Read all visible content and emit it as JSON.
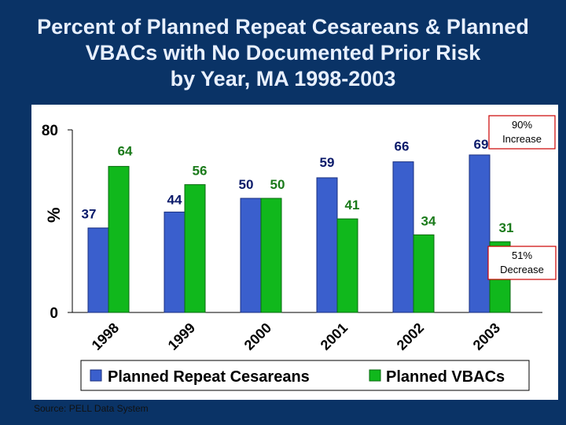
{
  "title_lines": [
    "Percent of Planned Repeat Cesareans & Planned",
    "VBACs with No Documented Prior Risk",
    "by Year, MA 1998-2003"
  ],
  "source": "Source: PELL Data System",
  "colors": {
    "background": "#0a3366",
    "series1": "#3a5fcd",
    "series2": "#10b81c",
    "label2": "#1a7a1a",
    "callout_border": "#cc0000"
  },
  "chart_data": {
    "type": "bar",
    "categories": [
      "1998",
      "1999",
      "2000",
      "2001",
      "2002",
      "2003"
    ],
    "series": [
      {
        "name": "Planned Repeat Cesareans",
        "values": [
          37,
          44,
          50,
          59,
          66,
          69
        ]
      },
      {
        "name": "Planned VBACs",
        "values": [
          64,
          56,
          50,
          41,
          34,
          31
        ]
      }
    ],
    "ylabel": "%",
    "ylim": [
      0,
      80
    ],
    "yticks": [
      "0",
      "80"
    ],
    "legend": "bottom",
    "annotations": [
      {
        "text": [
          "90%",
          "Increase"
        ],
        "target": "Planned Repeat Cesareans"
      },
      {
        "text": [
          "51%",
          "Decrease"
        ],
        "target": "Planned VBACs"
      }
    ]
  }
}
